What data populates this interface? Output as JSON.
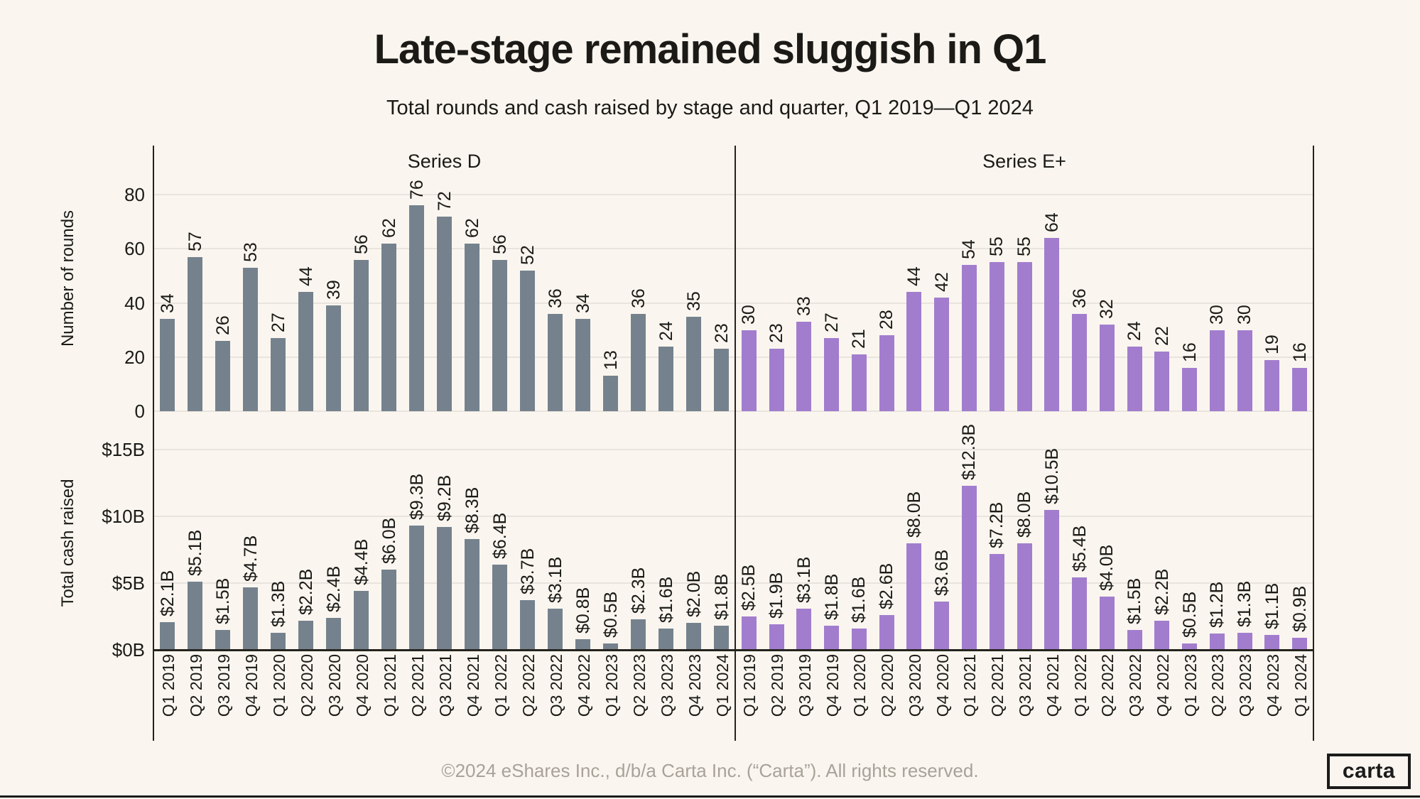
{
  "header": {
    "title": "Late-stage remained sluggish in Q1",
    "subtitle": "Total rounds and cash raised by stage and quarter, Q1 2019—Q1 2024"
  },
  "footer": {
    "copyright": "©2024 eShares Inc., d/b/a Carta Inc. (“Carta”). All rights reserved.",
    "logo_text": "carta"
  },
  "colors": {
    "background": "#FAF6EF",
    "series_d": "#75828E",
    "series_e_plus": "#A27DCE",
    "gridline": "#E9E5DE",
    "axis_line": "#25231E",
    "footer_text": "#A8A299"
  },
  "chart_data": {
    "type": "bar",
    "categories": [
      "Q1 2019",
      "Q2 2019",
      "Q3 2019",
      "Q4 2019",
      "Q1 2020",
      "Q2 2020",
      "Q3 2020",
      "Q4 2020",
      "Q1 2021",
      "Q2 2021",
      "Q3 2021",
      "Q4 2021",
      "Q1 2022",
      "Q2 2022",
      "Q3 2022",
      "Q4 2022",
      "Q1 2023",
      "Q2 2023",
      "Q3 2023",
      "Q4 2023",
      "Q1 2024"
    ],
    "column_titles": [
      "Series D",
      "Series E+"
    ],
    "rows": [
      {
        "metric": "rounds",
        "ylabel": "Number of rounds",
        "yticks": [
          {
            "value": 0,
            "label": "0"
          },
          {
            "value": 20,
            "label": "20"
          },
          {
            "value": 40,
            "label": "40"
          },
          {
            "value": 60,
            "label": "60"
          },
          {
            "value": 80,
            "label": "80"
          }
        ],
        "ylim": [
          0,
          98
        ],
        "grid": true
      },
      {
        "metric": "cash_billions",
        "ylabel": "Total cash raised",
        "yticks": [
          {
            "value": 0,
            "label": "$0B"
          },
          {
            "value": 5,
            "label": "$5B"
          },
          {
            "value": 10,
            "label": "$10B"
          },
          {
            "value": 15,
            "label": "$15B"
          }
        ],
        "ylim": [
          0,
          16.8
        ],
        "grid": true
      }
    ],
    "panels": [
      {
        "row": "rounds",
        "column": "Series D",
        "values": [
          34,
          57,
          26,
          53,
          27,
          44,
          39,
          56,
          62,
          76,
          72,
          62,
          56,
          52,
          36,
          34,
          13,
          36,
          24,
          35,
          23
        ],
        "value_labels": [
          "34",
          "57",
          "26",
          "53",
          "27",
          "44",
          "39",
          "56",
          "62",
          "76",
          "72",
          "62",
          "56",
          "52",
          "36",
          "34",
          "13",
          "36",
          "24",
          "35",
          "23"
        ]
      },
      {
        "row": "rounds",
        "column": "Series E+",
        "values": [
          30,
          23,
          33,
          27,
          21,
          28,
          44,
          42,
          54,
          55,
          55,
          64,
          36,
          32,
          24,
          22,
          16,
          30,
          30,
          19,
          16
        ],
        "value_labels": [
          "30",
          "23",
          "33",
          "27",
          "21",
          "28",
          "44",
          "42",
          "54",
          "55",
          "55",
          "64",
          "36",
          "32",
          "24",
          "22",
          "16",
          "30",
          "30",
          "19",
          "16"
        ]
      },
      {
        "row": "cash_billions",
        "column": "Series D",
        "values": [
          2.1,
          5.1,
          1.5,
          4.7,
          1.3,
          2.2,
          2.4,
          4.4,
          6.0,
          9.3,
          9.2,
          8.3,
          6.4,
          3.7,
          3.1,
          0.8,
          0.5,
          2.3,
          1.6,
          2.0,
          1.8
        ],
        "value_labels": [
          "$2.1B",
          "$5.1B",
          "$1.5B",
          "$4.7B",
          "$1.3B",
          "$2.2B",
          "$2.4B",
          "$4.4B",
          "$6.0B",
          "$9.3B",
          "$9.2B",
          "$8.3B",
          "$6.4B",
          "$3.7B",
          "$3.1B",
          "$0.8B",
          "$0.5B",
          "$2.3B",
          "$1.6B",
          "$2.0B",
          "$1.8B"
        ]
      },
      {
        "row": "cash_billions",
        "column": "Series E+",
        "values": [
          2.5,
          1.9,
          3.1,
          1.8,
          1.6,
          2.6,
          8.0,
          3.6,
          12.3,
          7.2,
          8.0,
          10.5,
          5.4,
          4.0,
          1.5,
          2.2,
          0.5,
          1.2,
          1.3,
          1.1,
          0.9
        ],
        "value_labels": [
          "$2.5B",
          "$1.9B",
          "$3.1B",
          "$1.8B",
          "$1.6B",
          "$2.6B",
          "$8.0B",
          "$3.6B",
          "$12.3B",
          "$7.2B",
          "$8.0B",
          "$10.5B",
          "$5.4B",
          "$4.0B",
          "$1.5B",
          "$2.2B",
          "$0.5B",
          "$1.2B",
          "$1.3B",
          "$1.1B",
          "$0.9B"
        ]
      }
    ]
  }
}
